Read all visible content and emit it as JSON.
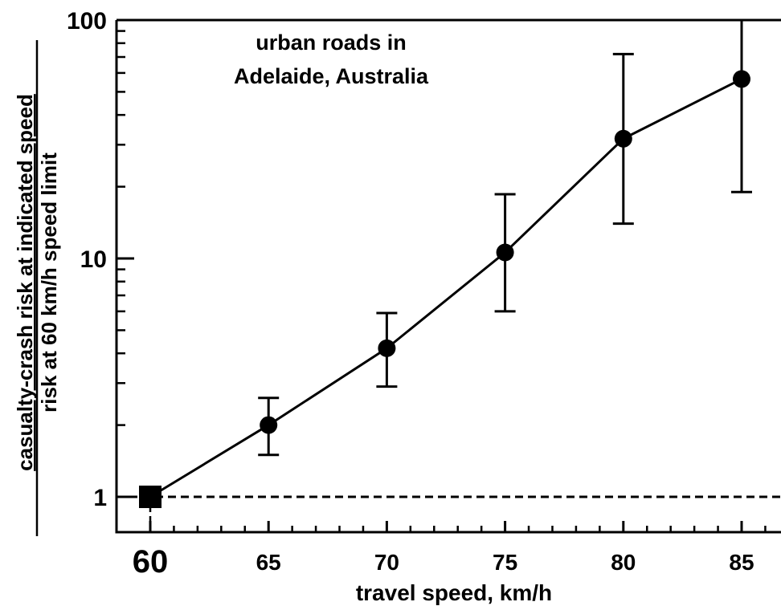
{
  "chart_data": {
    "type": "line",
    "title_lines": [
      "urban roads in",
      "Adelaide, Australia"
    ],
    "xlabel": "travel speed, km/h",
    "ylabel_numerator": "casualty-crash risk at indicated speed",
    "ylabel_denominator": "risk at 60 km/h speed limit",
    "yscale": "log",
    "xlim": [
      58.5,
      87.5
    ],
    "ylim": [
      0.7,
      100
    ],
    "x_ticks": [
      {
        "value": 60,
        "label": "60"
      },
      {
        "value": 65,
        "label": "65"
      },
      {
        "value": 70,
        "label": "70"
      },
      {
        "value": 75,
        "label": "75"
      },
      {
        "value": 80,
        "label": "80"
      },
      {
        "value": 85,
        "label": "85"
      }
    ],
    "y_ticks": [
      {
        "value": 1,
        "label": "1"
      },
      {
        "value": 10,
        "label": "10"
      },
      {
        "value": 100,
        "label": "100"
      }
    ],
    "reference_line": {
      "y": 1,
      "style": "dashed"
    },
    "series": [
      {
        "points": [
          {
            "x": 60,
            "y": 1.0,
            "low": 1.0,
            "high": 1.0,
            "marker": "square"
          },
          {
            "x": 65,
            "y": 2.0,
            "low": 1.5,
            "high": 2.6,
            "marker": "circle"
          },
          {
            "x": 70,
            "y": 4.2,
            "low": 2.9,
            "high": 5.9,
            "marker": "circle"
          },
          {
            "x": 75,
            "y": 10.6,
            "low": 6.0,
            "high": 18.6,
            "marker": "circle"
          },
          {
            "x": 80,
            "y": 31.8,
            "low": 14.0,
            "high": 72.0,
            "marker": "circle"
          },
          {
            "x": 85,
            "y": 56.6,
            "low": 19.0,
            "high": 100,
            "marker": "circle"
          }
        ]
      }
    ],
    "grid": false
  }
}
